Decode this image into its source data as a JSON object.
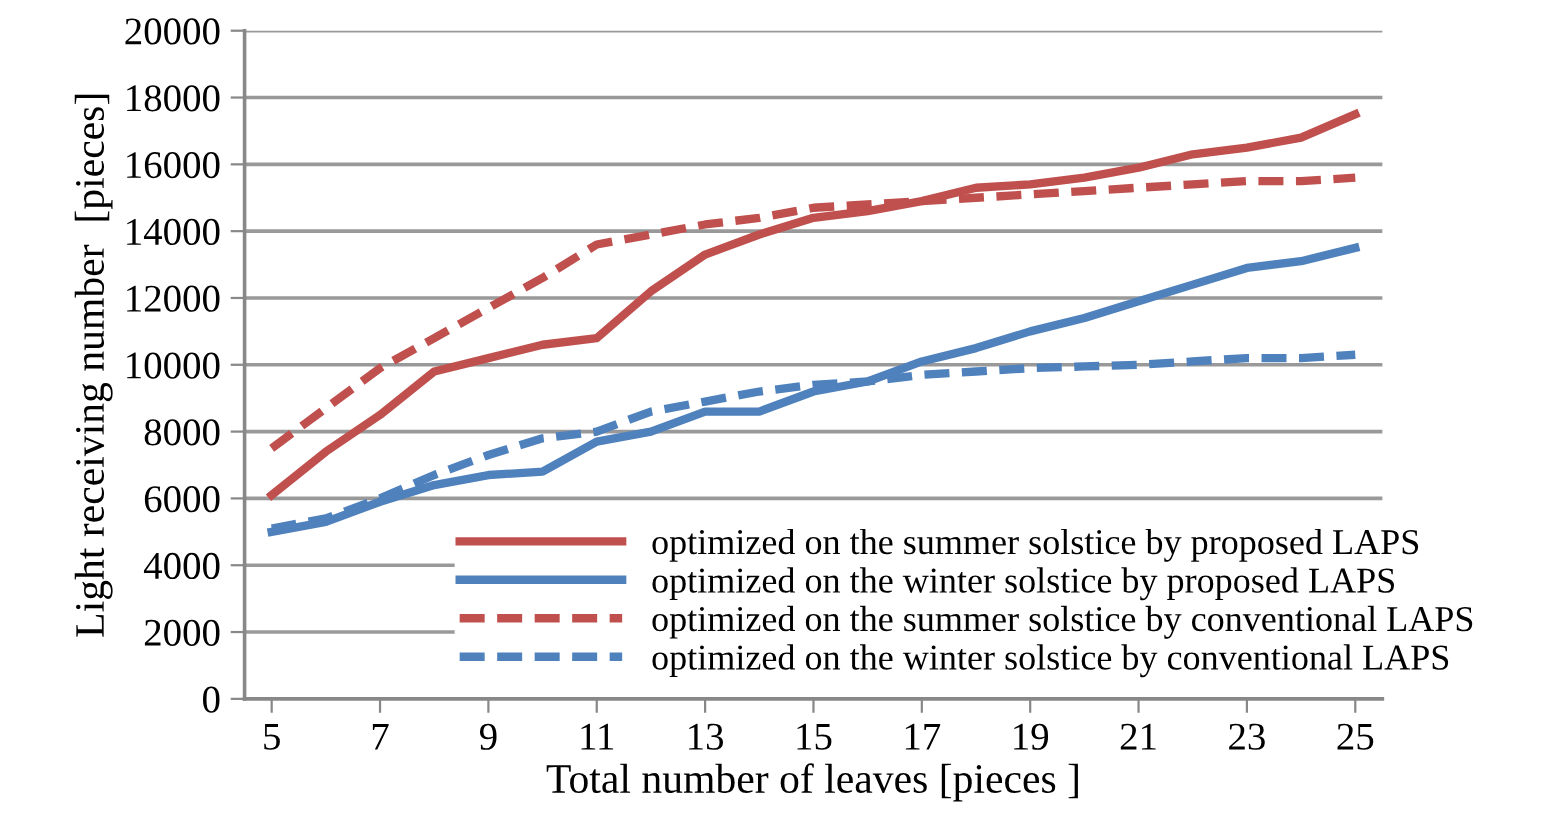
{
  "chart_data": {
    "type": "line",
    "xlabel": "Total number of leaves [pieces ]",
    "ylabel": "Light receiving number  [pieces]",
    "x": [
      5,
      6,
      7,
      8,
      9,
      10,
      11,
      12,
      13,
      14,
      15,
      16,
      17,
      18,
      19,
      20,
      21,
      22,
      23,
      24,
      25
    ],
    "xlim": [
      4.5,
      25.5
    ],
    "xticks": [
      5,
      7,
      9,
      11,
      13,
      15,
      17,
      19,
      21,
      23,
      25
    ],
    "ylim": [
      0,
      20000
    ],
    "yticks": [
      0,
      2000,
      4000,
      6000,
      8000,
      10000,
      12000,
      14000,
      16000,
      18000,
      20000
    ],
    "grid": "y",
    "legend": "bottom right",
    "series": [
      {
        "name": "optimized on the summer solstice by proposed LAPS",
        "color": "#c0504d",
        "line_style": "solid",
        "values": [
          6100,
          7400,
          8500,
          9800,
          10200,
          10600,
          10800,
          12200,
          13300,
          13900,
          14400,
          14600,
          14900,
          15300,
          15400,
          15600,
          15900,
          16300,
          16500,
          16800,
          17500
        ]
      },
      {
        "name": "optimized on the winter solstice by proposed LAPS",
        "color": "#4f81bd",
        "line_style": "solid",
        "values": [
          5000,
          5300,
          5900,
          6400,
          6700,
          6800,
          7700,
          8000,
          8600,
          8600,
          9200,
          9500,
          10100,
          10500,
          11000,
          11400,
          11900,
          12400,
          12900,
          13100,
          13500
        ]
      },
      {
        "name": "optimized on the summer solstice by conventional LAPS",
        "color": "#c0504d",
        "line_style": "dashed",
        "values": [
          7500,
          8700,
          9900,
          10800,
          11700,
          12600,
          13600,
          13900,
          14200,
          14400,
          14700,
          14800,
          14900,
          15000,
          15100,
          15200,
          15300,
          15400,
          15500,
          15500,
          15600
        ]
      },
      {
        "name": "optimized on the winter solstice by conventional LAPS",
        "color": "#4f81bd",
        "line_style": "dashed",
        "values": [
          5100,
          5400,
          6000,
          6700,
          7300,
          7800,
          8000,
          8600,
          8900,
          9200,
          9400,
          9500,
          9700,
          9800,
          9900,
          9950,
          10000,
          10100,
          10200,
          10200,
          10300
        ]
      }
    ]
  }
}
